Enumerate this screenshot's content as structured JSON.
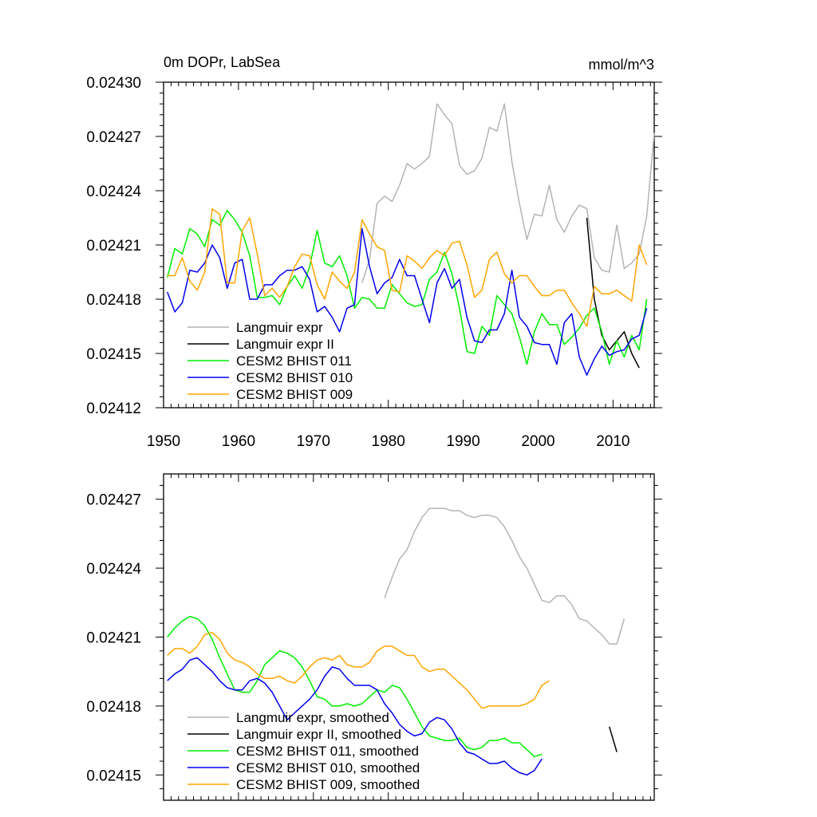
{
  "chart_data": [
    {
      "type": "line",
      "title": "0m DOPr, LabSea",
      "units": "mmol/m^3",
      "xlabel": "",
      "ylabel": "",
      "xlim": [
        1950,
        2015.5
      ],
      "ylim": [
        0.02412,
        0.0243
      ],
      "xticks": [
        1950,
        1960,
        1970,
        1980,
        1990,
        2000,
        2010
      ],
      "xtick_labels": [
        "1950",
        "1960",
        "1970",
        "1980",
        "1990",
        "2000",
        "2010"
      ],
      "yticks": [
        0.02412,
        0.02415,
        0.02418,
        0.02421,
        0.02424,
        0.02427,
        0.0243
      ],
      "ytick_labels": [
        "0.02412",
        "0.02415",
        "0.02418",
        "0.02421",
        "0.02424",
        "0.02427",
        "0.02430"
      ],
      "legend_position": "bottom-left",
      "series": [
        {
          "name": "Langmuir expr",
          "color": "#b4b4b4",
          "x_start": 1976.5,
          "values": [
            0.024189,
            0.024202,
            0.024233,
            0.024237,
            0.024234,
            0.024243,
            0.024255,
            0.024252,
            0.024255,
            0.024259,
            0.024288,
            0.024282,
            0.024277,
            0.024254,
            0.024249,
            0.024251,
            0.024258,
            0.024275,
            0.024273,
            0.024288,
            0.024256,
            0.024233,
            0.024213,
            0.024227,
            0.024226,
            0.024243,
            0.024224,
            0.024217,
            0.024226,
            0.024232,
            0.02423,
            0.024203,
            0.024196,
            0.024195,
            0.024221,
            0.024197,
            0.0242,
            0.024205,
            0.024226,
            0.024272
          ]
        },
        {
          "name": "Langmuir expr II",
          "color": "#000000",
          "x_start": 2006.5,
          "values": [
            0.024225,
            0.02418,
            0.02416,
            0.024152,
            0.024157,
            0.024162,
            0.02415,
            0.024142
          ]
        },
        {
          "name": "CESM2 BHIST 011",
          "color": "#00ee00",
          "x_start": 1950.5,
          "values": [
            0.024192,
            0.024208,
            0.024205,
            0.024219,
            0.024216,
            0.024209,
            0.024224,
            0.024221,
            0.024229,
            0.024224,
            0.024217,
            0.024204,
            0.024181,
            0.024181,
            0.024182,
            0.024177,
            0.024187,
            0.024193,
            0.024186,
            0.024198,
            0.024218,
            0.0242,
            0.024198,
            0.024204,
            0.024193,
            0.024175,
            0.024181,
            0.02418,
            0.024175,
            0.024175,
            0.024188,
            0.024183,
            0.024178,
            0.024176,
            0.024177,
            0.024191,
            0.024195,
            0.024206,
            0.024194,
            0.024175,
            0.024151,
            0.02415,
            0.024165,
            0.02416,
            0.024182,
            0.024177,
            0.024172,
            0.024159,
            0.024144,
            0.024162,
            0.024172,
            0.024166,
            0.024166,
            0.024155,
            0.024159,
            0.024164,
            0.024171,
            0.024175,
            0.024162,
            0.024144,
            0.024157,
            0.024148,
            0.02416,
            0.024152,
            0.02418
          ]
        },
        {
          "name": "CESM2 BHIST 010",
          "color": "#0000ee",
          "x_start": 1950.5,
          "values": [
            0.024184,
            0.024173,
            0.024178,
            0.024196,
            0.024195,
            0.0242,
            0.02421,
            0.024203,
            0.024186,
            0.0242,
            0.024202,
            0.02418,
            0.02418,
            0.024188,
            0.024188,
            0.024193,
            0.024196,
            0.024196,
            0.024198,
            0.024191,
            0.024173,
            0.024176,
            0.02417,
            0.024162,
            0.024175,
            0.024177,
            0.024219,
            0.024198,
            0.024183,
            0.024189,
            0.024192,
            0.024202,
            0.024193,
            0.024193,
            0.02418,
            0.024167,
            0.024189,
            0.024197,
            0.024186,
            0.024191,
            0.02417,
            0.024157,
            0.024156,
            0.024163,
            0.024163,
            0.024172,
            0.024196,
            0.02417,
            0.024165,
            0.024156,
            0.024155,
            0.024155,
            0.024144,
            0.024167,
            0.024172,
            0.024148,
            0.024138,
            0.024147,
            0.024154,
            0.024149,
            0.024151,
            0.024152,
            0.024158,
            0.02416,
            0.024175
          ]
        },
        {
          "name": "CESM2 BHIST 009",
          "color": "#ffa500",
          "x_start": 1950.5,
          "values": [
            0.024193,
            0.024193,
            0.024203,
            0.02419,
            0.024185,
            0.024195,
            0.02423,
            0.024227,
            0.024189,
            0.024189,
            0.024218,
            0.024225,
            0.024205,
            0.024182,
            0.024186,
            0.024181,
            0.024187,
            0.024198,
            0.024205,
            0.024204,
            0.024188,
            0.02418,
            0.024195,
            0.02419,
            0.024186,
            0.024195,
            0.024224,
            0.024216,
            0.024209,
            0.024207,
            0.024185,
            0.024184,
            0.024204,
            0.024201,
            0.024197,
            0.024203,
            0.024207,
            0.024204,
            0.024211,
            0.024212,
            0.024199,
            0.024181,
            0.024185,
            0.024202,
            0.024206,
            0.024194,
            0.024189,
            0.024193,
            0.024193,
            0.024187,
            0.024182,
            0.024182,
            0.024185,
            0.024185,
            0.024178,
            0.024172,
            0.024165,
            0.024187,
            0.024183,
            0.024183,
            0.024185,
            0.024182,
            0.024179,
            0.02421,
            0.024199
          ]
        }
      ]
    },
    {
      "type": "line",
      "title": "",
      "xlabel": "",
      "ylabel": "",
      "xlim": [
        1950,
        2015.5
      ],
      "ylim": [
        0.024139,
        0.024281
      ],
      "xticks": [
        1950,
        1960,
        1970,
        1980,
        1990,
        2000,
        2010
      ],
      "yticks": [
        0.02415,
        0.02418,
        0.02421,
        0.02424,
        0.02427
      ],
      "ytick_labels": [
        "0.02415",
        "0.02418",
        "0.02421",
        "0.02424",
        "0.02427"
      ],
      "legend_position": "bottom-left",
      "series": [
        {
          "name": "Langmuir expr, smoothed",
          "color": "#b4b4b4",
          "x_start": 1979.5,
          "values": [
            0.024227,
            0.024236,
            0.024244,
            0.024248,
            0.024256,
            0.024262,
            0.024266,
            0.024266,
            0.024266,
            0.024265,
            0.024265,
            0.024263,
            0.024262,
            0.024263,
            0.024263,
            0.024262,
            0.024258,
            0.024252,
            0.024245,
            0.02424,
            0.024233,
            0.024226,
            0.024225,
            0.024228,
            0.024228,
            0.024224,
            0.024218,
            0.024217,
            0.024214,
            0.024211,
            0.024207,
            0.024207,
            0.024218
          ]
        },
        {
          "name": "Langmuir expr II, smoothed",
          "color": "#000000",
          "x_start": 2009.5,
          "values": [
            0.024171,
            0.02416
          ]
        },
        {
          "name": "CESM2 BHIST 011, smoothed",
          "color": "#00ee00",
          "x_start": 1950.5,
          "values": [
            0.02421,
            0.024214,
            0.024217,
            0.024219,
            0.024218,
            0.024215,
            0.024209,
            0.024201,
            0.024194,
            0.024187,
            0.024186,
            0.024186,
            0.024191,
            0.024198,
            0.024201,
            0.024204,
            0.024203,
            0.024201,
            0.024197,
            0.024191,
            0.024184,
            0.024183,
            0.02418,
            0.02418,
            0.024181,
            0.02418,
            0.024181,
            0.024184,
            0.024187,
            0.024186,
            0.024189,
            0.024188,
            0.024183,
            0.024177,
            0.024171,
            0.024167,
            0.024166,
            0.024165,
            0.024165,
            0.024166,
            0.024162,
            0.024161,
            0.024162,
            0.024165,
            0.024165,
            0.024166,
            0.024164,
            0.024164,
            0.024161,
            0.024158,
            0.024159
          ]
        },
        {
          "name": "CESM2 BHIST 010, smoothed",
          "color": "#0000ee",
          "x_start": 1950.5,
          "values": [
            0.024191,
            0.024194,
            0.024196,
            0.0242,
            0.024201,
            0.024198,
            0.024195,
            0.024191,
            0.024188,
            0.024187,
            0.024187,
            0.024191,
            0.024192,
            0.02419,
            0.024186,
            0.02418,
            0.024174,
            0.024177,
            0.02418,
            0.024183,
            0.024187,
            0.024193,
            0.024197,
            0.024196,
            0.024192,
            0.024189,
            0.024189,
            0.024189,
            0.024187,
            0.024181,
            0.024177,
            0.024172,
            0.024169,
            0.024167,
            0.024168,
            0.024173,
            0.024175,
            0.024174,
            0.02417,
            0.024164,
            0.02416,
            0.024159,
            0.024157,
            0.024155,
            0.024155,
            0.024156,
            0.024153,
            0.024151,
            0.02415,
            0.024152,
            0.024157
          ]
        },
        {
          "name": "CESM2 BHIST 009, smoothed",
          "color": "#ffa500",
          "x_start": 1950.5,
          "values": [
            0.024202,
            0.024205,
            0.024205,
            0.024203,
            0.024206,
            0.024211,
            0.024212,
            0.024209,
            0.024203,
            0.0242,
            0.024199,
            0.024197,
            0.024194,
            0.024192,
            0.024192,
            0.024193,
            0.024191,
            0.02419,
            0.024193,
            0.024197,
            0.0242,
            0.024201,
            0.0242,
            0.024202,
            0.024198,
            0.024197,
            0.024197,
            0.024199,
            0.024204,
            0.024206,
            0.024206,
            0.024204,
            0.024202,
            0.024202,
            0.024197,
            0.024195,
            0.024196,
            0.024196,
            0.024193,
            0.02419,
            0.024187,
            0.024183,
            0.024179,
            0.02418,
            0.02418,
            0.02418,
            0.02418,
            0.02418,
            0.024181,
            0.024183,
            0.024189,
            0.024191
          ]
        }
      ]
    }
  ]
}
